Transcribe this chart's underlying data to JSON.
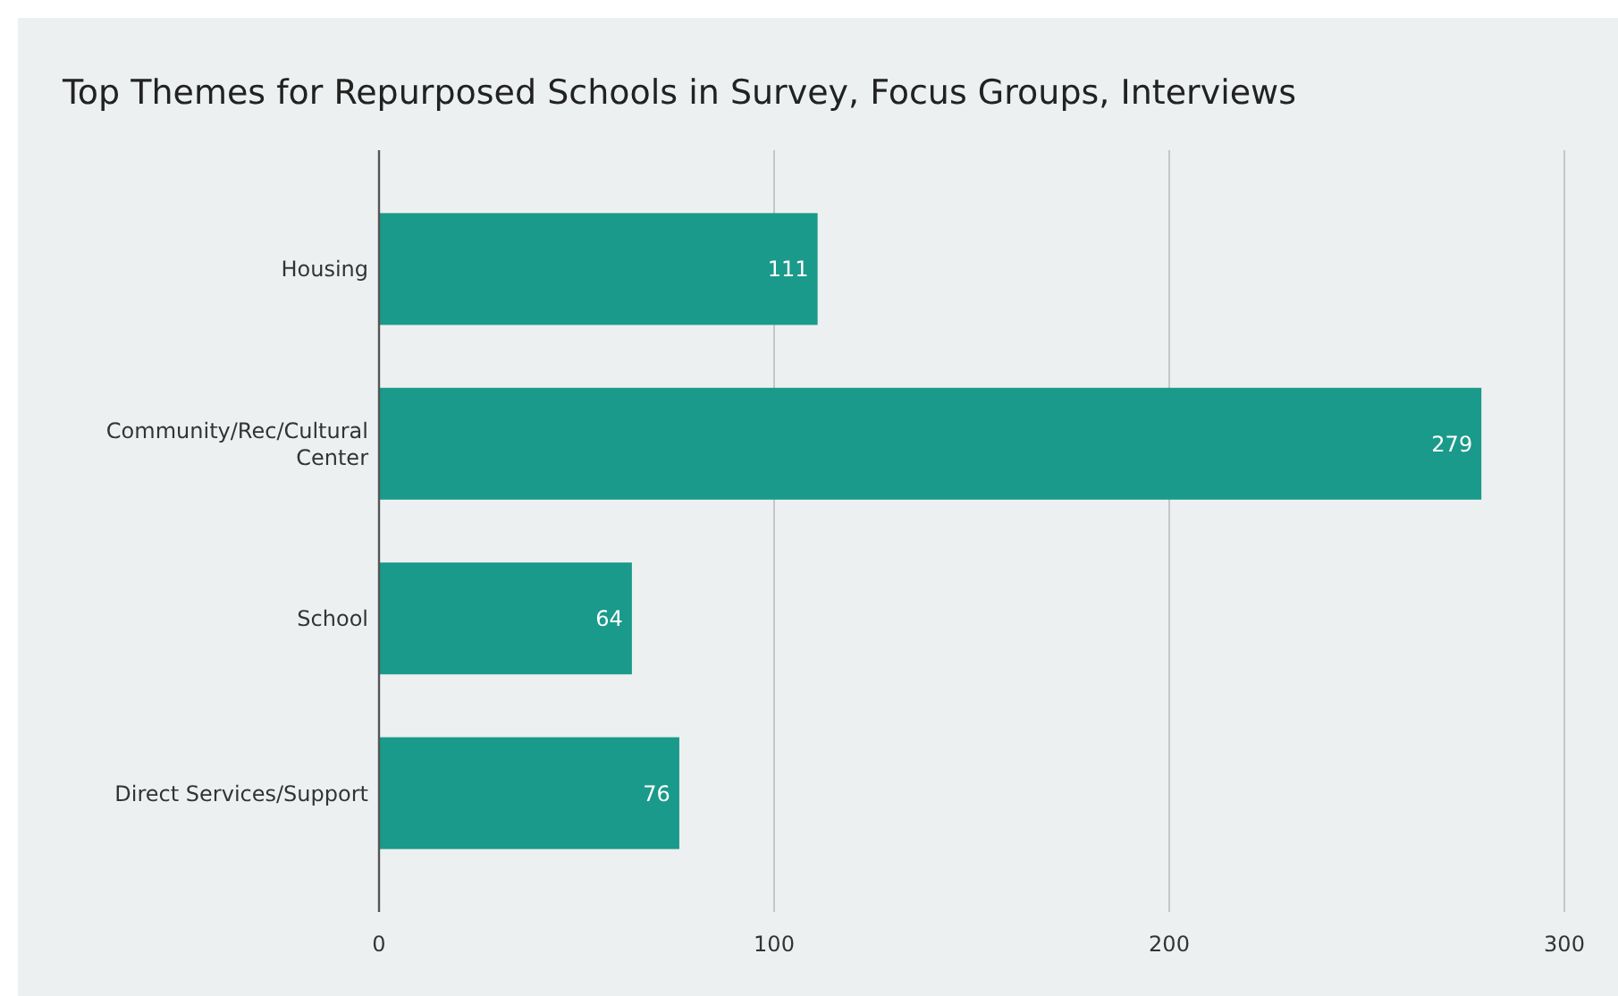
{
  "chart_data": {
    "type": "bar",
    "orientation": "horizontal",
    "title": "Top Themes for Repurposed Schools in Survey, Focus Groups, Interviews",
    "categories": [
      "Housing",
      "Community/Rec/Cultural Center",
      "School",
      "Direct Services/Support"
    ],
    "values": [
      111,
      279,
      64,
      76
    ],
    "color": "#1a9a8a",
    "xlim": [
      0,
      300
    ],
    "xticks": [
      0,
      100,
      200,
      300
    ],
    "grid": "x",
    "data_labels": true
  }
}
